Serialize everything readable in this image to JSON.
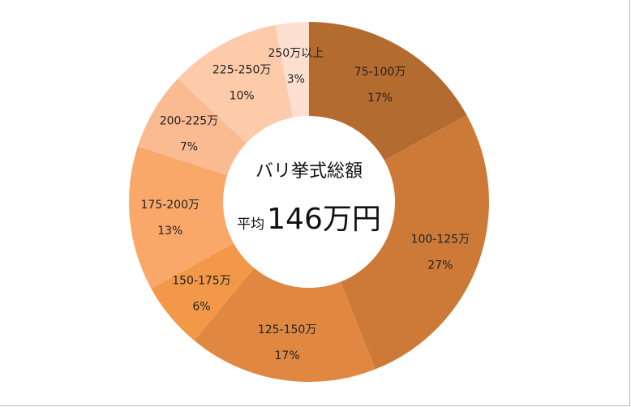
{
  "chart_data": {
    "type": "pie",
    "donut": true,
    "center_title": "バリ挙式総額",
    "center_prefix": "平均",
    "center_value": "146万円",
    "categories": [
      "75-100万",
      "100-125万",
      "125-150万",
      "150-175万",
      "175-200万",
      "200-225万",
      "225-250万",
      "250万以上"
    ],
    "values": [
      17,
      27,
      17,
      6,
      13,
      7,
      10,
      3
    ],
    "labels": [
      "17%",
      "27%",
      "17%",
      "6%",
      "13%",
      "7%",
      "10%",
      "3%"
    ],
    "colors": [
      "#B36B30",
      "#CD7A38",
      "#E08841",
      "#F29848",
      "#F9A86A",
      "#FBBB92",
      "#FDCBAA",
      "#FEE0D0"
    ],
    "start": "top",
    "direction": "clockwise"
  }
}
